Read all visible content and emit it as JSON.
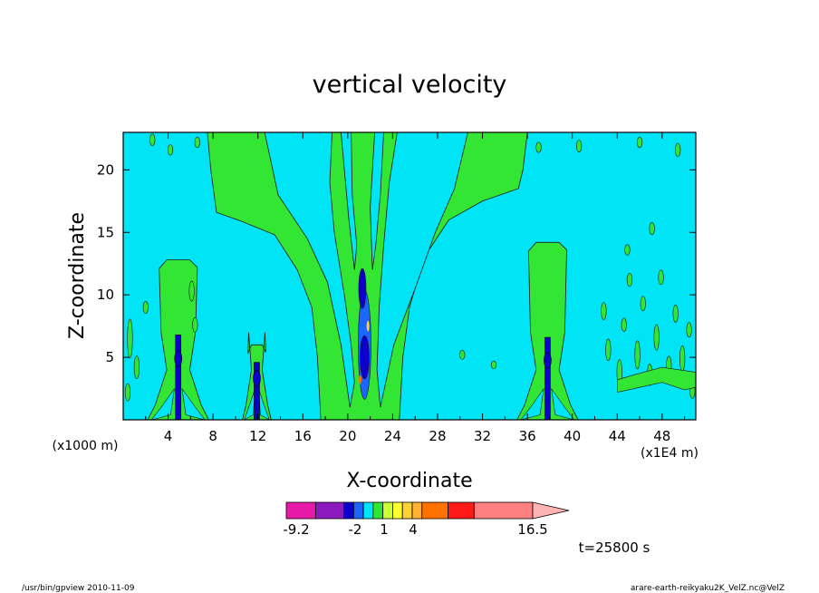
{
  "chart_data": {
    "type": "heatmap",
    "title": "vertical velocity",
    "xlabel": "X-coordinate",
    "ylabel": "Z-coordinate",
    "x_unit_left": "(x1000 m)",
    "x_unit_right": "(x1E4 m)",
    "xlim": [
      0,
      51
    ],
    "ylim": [
      0,
      23
    ],
    "x_ticks": [
      4,
      8,
      12,
      16,
      20,
      24,
      28,
      32,
      36,
      40,
      44,
      48
    ],
    "y_ticks": [
      5,
      10,
      15,
      20
    ],
    "background_level_color": "#00e5f5",
    "updraft_region": {
      "color": "#33e633",
      "outer_top_x": [
        7.5,
        36
      ],
      "inner_top_x": [
        19,
        23
      ],
      "base_x": [
        17.5,
        24.5
      ],
      "core_x": 21.5
    },
    "towers": [
      {
        "x": 4.9,
        "top": 12.8,
        "core_top": 6.8
      },
      {
        "x": 11.9,
        "top": 6.0,
        "core_top": 4.6
      },
      {
        "x": 37.8,
        "top": 14.2,
        "core_top": 6.6
      }
    ],
    "colorbar": {
      "colors": [
        "#e619a8",
        "#8c19bf",
        "#0d00cc",
        "#1a66ff",
        "#00e5f5",
        "#33e633",
        "#ccff33",
        "#ffff33",
        "#ffd133",
        "#ffb233",
        "#ff7200",
        "#ff1a1a",
        "#ff8080",
        "#ffb3b3"
      ],
      "labels": [
        "-9.2",
        "-2",
        "1",
        "4",
        "16.5"
      ]
    },
    "time_label": "t=25800 s"
  },
  "footer": {
    "left": "/usr/bin/gpview   2010-11-09",
    "right": "arare-earth-reikyaku2K_VelZ.nc@VelZ"
  }
}
